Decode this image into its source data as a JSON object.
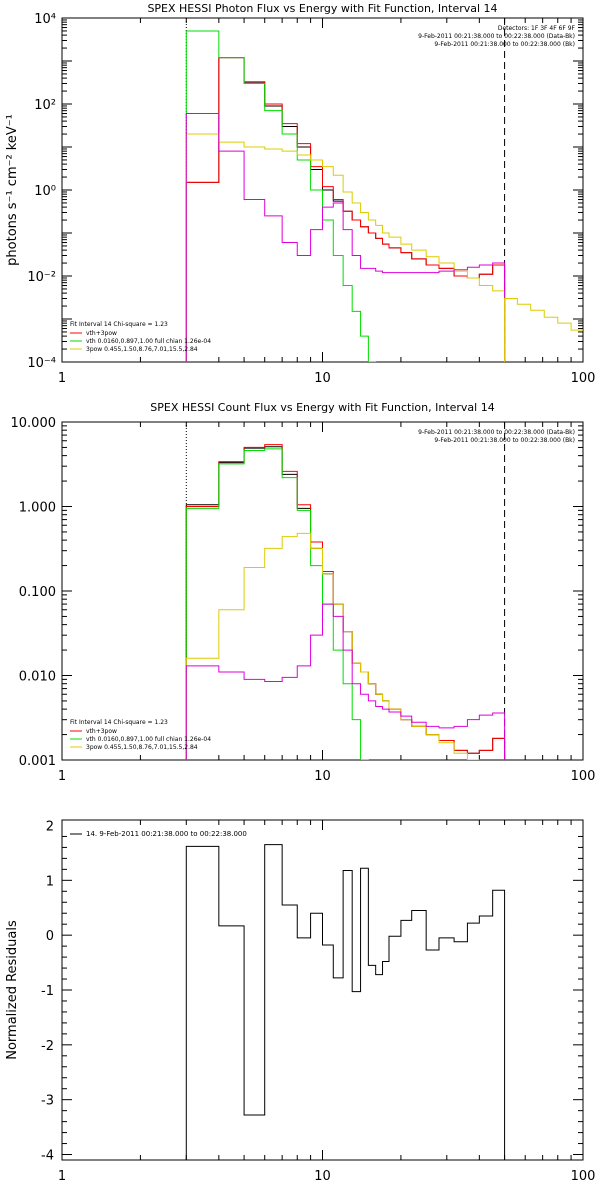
{
  "chart_data": [
    {
      "type": "line",
      "title": "SPEX HESSI Photon Flux vs Energy with Fit Function, Interval 14",
      "ylabel": "photons s⁻¹ cm⁻² keV⁻¹",
      "xlabel": "",
      "xscale": "log",
      "yscale": "log",
      "xlim": [
        1,
        100
      ],
      "ylim": [
        0.0001,
        10000
      ],
      "x_ticks": [
        "1",
        "10",
        "100"
      ],
      "y_ticks": [
        "10⁻⁴",
        "10⁻²",
        "10⁰",
        "10²",
        "10⁴"
      ],
      "info": [
        "Detectors: 1F 3F 4F 6F 9F",
        "9-Feb-2011 00:21:38.000 to 00:22:38.000 (Data-Bk)",
        "9-Feb-2011 00:21:38.000 to 00:22:38.000 (Bk)"
      ],
      "fit_text": {
        "header": "Fit Interval 14   Chi-square = 1.23",
        "lines": [
          "vth+3pow",
          "vth 0.0160,0.897,1.00  full chian 1.26e-04",
          "3pow 0.455,1.50,8.76,7.01,15.5,2.84"
        ]
      },
      "vlines": [
        {
          "x": 3,
          "style": "dotted"
        },
        {
          "x": 50,
          "style": "dashed"
        }
      ],
      "edges": [
        3.0,
        4.0,
        5.0,
        6.0,
        7.0,
        8.0,
        9.0,
        10.0,
        11.0,
        12.0,
        13.0,
        14.0,
        15.0,
        16.0,
        17.0,
        18.0,
        20.0,
        22.0,
        25.0,
        28.0,
        32.0,
        36.0,
        40.0,
        45.0,
        50.0
      ],
      "series": [
        {
          "color": "#000000",
          "steps": [
            1.5,
            1200,
            320,
            90,
            30,
            10,
            3,
            1,
            0.55,
            0.32,
            0.2,
            0.14,
            0.1,
            0.075,
            0.055,
            0.045,
            0.035,
            0.025,
            0.018,
            0.015,
            0.01,
            0.009,
            0.011,
            0.018
          ]
        },
        {
          "color": "#ff0000",
          "steps": [
            1.5,
            1200,
            330,
            100,
            35,
            12,
            3.5,
            1.2,
            0.6,
            0.32,
            0.2,
            0.14,
            0.1,
            0.075,
            0.055,
            0.045,
            0.035,
            0.025,
            0.018,
            0.015,
            0.01,
            0.009,
            0.011,
            0.018
          ]
        },
        {
          "color": "#00dd00",
          "steps": [
            5000,
            1200,
            300,
            70,
            20,
            5,
            1,
            0.2,
            0.03,
            0.006,
            0.0015,
            0.0004,
            0.0001,
            5e-05,
            1e-05,
            1e-05,
            1e-05,
            1e-05,
            1e-05,
            1e-05,
            1e-05,
            1e-05,
            1e-05,
            1e-05
          ]
        },
        {
          "color": "#ddcc00",
          "steps": [
            20,
            13,
            10,
            9,
            8,
            6.5,
            5,
            3.5,
            2.2,
            0.9,
            0.5,
            0.3,
            0.2,
            0.15,
            0.1,
            0.08,
            0.055,
            0.04,
            0.028,
            0.02,
            0.013,
            0.009,
            0.006,
            0.0045
          ]
        },
        {
          "color": "#dd00dd",
          "steps": [
            60,
            8,
            0.6,
            0.25,
            0.06,
            0.03,
            0.12,
            0.4,
            0.5,
            0.12,
            0.03,
            0.015,
            0.015,
            0.013,
            0.012,
            0.012,
            0.012,
            0.012,
            0.012,
            0.013,
            0.014,
            0.016,
            0.018,
            0.02
          ]
        },
        {
          "color": "#ddcc00",
          "stepsFrom": 50.0,
          "edges2": [
            50,
            56,
            63,
            71,
            80,
            90,
            100
          ],
          "steps2": [
            0.003,
            0.0022,
            0.0016,
            0.0011,
            0.0008,
            0.00055
          ]
        }
      ]
    },
    {
      "type": "line",
      "title": "SPEX HESSI Count Flux vs Energy with Fit Function, Interval 14",
      "ylabel": "",
      "xlabel": "",
      "xscale": "log",
      "yscale": "log",
      "xlim": [
        1,
        100
      ],
      "ylim": [
        0.001,
        10
      ],
      "x_ticks": [
        "1",
        "10",
        "100"
      ],
      "y_ticks": [
        "0.001",
        "0.010",
        "0.100",
        "1.000",
        "10.000"
      ],
      "info": [
        "9-Feb-2011 00:21:38.000 to 00:22:38.000 (Data-Bk)",
        "9-Feb-2011 00:21:38.000 to 00:22:38.000 (Bk)"
      ],
      "fit_text": {
        "header": "Fit Interval 14   Chi-square = 1.23",
        "lines": [
          "vth+3pow",
          "vth 0.0160,0.897,1.00  full chian 1.26e-04",
          "3pow 0.455,1.50,8.76,7.01,15.5,2.84"
        ]
      },
      "vlines": [
        {
          "x": 3,
          "style": "dotted"
        },
        {
          "x": 50,
          "style": "dashed"
        }
      ],
      "edges": [
        3.0,
        4.0,
        5.0,
        6.0,
        7.0,
        8.0,
        9.0,
        10.0,
        11.0,
        12.0,
        13.0,
        14.0,
        15.0,
        16.0,
        17.0,
        18.0,
        20.0,
        22.0,
        25.0,
        28.0,
        32.0,
        36.0,
        40.0,
        45.0,
        50.0
      ],
      "series": [
        {
          "color": "#000000",
          "steps": [
            1.05,
            3.3,
            4.9,
            5.1,
            2.4,
            0.95,
            0.32,
            0.16,
            0.07,
            0.033,
            0.014,
            0.011,
            0.008,
            0.006,
            0.005,
            0.004,
            0.003,
            0.0025,
            0.002,
            0.0017,
            0.0013,
            0.0012,
            0.0013,
            0.0018
          ]
        },
        {
          "color": "#ff0000",
          "steps": [
            1.0,
            3.4,
            5.0,
            5.4,
            2.6,
            1.05,
            0.38,
            0.17,
            0.07,
            0.033,
            0.014,
            0.011,
            0.008,
            0.006,
            0.005,
            0.004,
            0.003,
            0.0025,
            0.002,
            0.0017,
            0.0013,
            0.0012,
            0.0013,
            0.0018
          ]
        },
        {
          "color": "#00dd00",
          "steps": [
            0.95,
            3.2,
            4.6,
            4.8,
            2.2,
            0.9,
            0.2,
            0.07,
            0.02,
            0.008,
            0.003,
            0.001,
            0.0008,
            0.0008,
            0.0008,
            0.0008,
            0.0008,
            0.0008,
            0.0008,
            0.0008,
            0.0008,
            0.0008,
            0.0008,
            0.0008
          ]
        },
        {
          "color": "#ddcc00",
          "steps": [
            0.016,
            0.06,
            0.19,
            0.32,
            0.44,
            0.48,
            0.32,
            0.16,
            0.07,
            0.033,
            0.014,
            0.011,
            0.008,
            0.006,
            0.005,
            0.004,
            0.003,
            0.0025,
            0.002,
            0.0016,
            0.0012,
            0.001,
            0.0008,
            0.0006
          ]
        },
        {
          "color": "#dd00dd",
          "steps": [
            0.013,
            0.011,
            0.009,
            0.0085,
            0.0095,
            0.013,
            0.03,
            0.07,
            0.05,
            0.02,
            0.008,
            0.006,
            0.005,
            0.0043,
            0.004,
            0.0037,
            0.0033,
            0.0028,
            0.0025,
            0.0024,
            0.0025,
            0.003,
            0.0034,
            0.0036
          ]
        }
      ]
    },
    {
      "type": "line",
      "title": "",
      "ylabel": "Normalized Residuals",
      "xlabel": "",
      "xscale": "log",
      "yscale": "linear",
      "xlim": [
        1,
        100
      ],
      "ylim": [
        -4.1,
        2.1
      ],
      "x_ticks": [
        "1",
        "10",
        "100"
      ],
      "y_ticks": [
        "-4",
        "-3",
        "-2",
        "-1",
        "0",
        "1",
        "2"
      ],
      "legend": "14.  9-Feb-2011 00:21:38.000 to 00:22:38.000",
      "edges": [
        3.0,
        4.0,
        5.0,
        6.0,
        7.0,
        8.0,
        9.0,
        10.0,
        11.0,
        12.0,
        13.0,
        14.0,
        15.0,
        16.0,
        17.0,
        18.0,
        20.0,
        22.0,
        25.0,
        28.0,
        32.0,
        36.0,
        40.0,
        45.0,
        50.0
      ],
      "series": [
        {
          "color": "#000000",
          "steps": [
            1.62,
            0.17,
            -3.28,
            1.65,
            0.55,
            -0.05,
            0.4,
            -0.18,
            -0.78,
            1.18,
            -1.03,
            1.22,
            -0.55,
            -0.72,
            -0.48,
            -0.02,
            0.27,
            0.45,
            -0.27,
            -0.05,
            -0.12,
            0.22,
            0.35,
            0.82
          ]
        }
      ]
    }
  ]
}
